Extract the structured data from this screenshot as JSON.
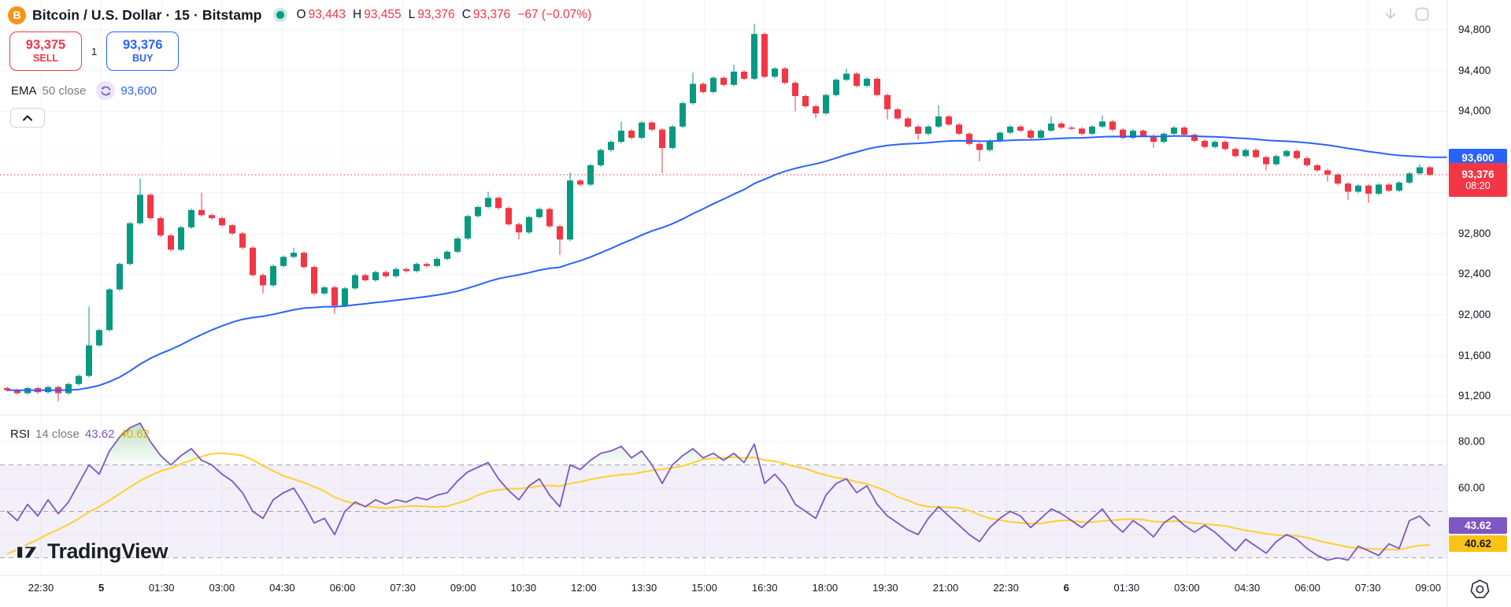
{
  "header": {
    "symbol_title": "Bitcoin / U.S. Dollar · 15 · Bitstamp",
    "ohlc": {
      "o_label": "O",
      "o_value": "93,443",
      "h_label": "H",
      "h_value": "93,455",
      "l_label": "L",
      "l_value": "93,376",
      "c_label": "C",
      "c_value": "93,376",
      "change": "−67 (−0.07%)"
    }
  },
  "trade_panel": {
    "sell_price": "93,375",
    "sell_label": "SELL",
    "spread": "1",
    "buy_price": "93,376",
    "buy_label": "BUY"
  },
  "ema_row": {
    "name": "EMA",
    "params": "50 close",
    "value": "93,600"
  },
  "rsi_row": {
    "name": "RSI",
    "params": "14 close",
    "value": "43.62",
    "ma_value": "40.62"
  },
  "price_axis": {
    "labels": [
      "94,800",
      "94,400",
      "94,000",
      "92,800",
      "92,400",
      "92,000",
      "91,600",
      "91,200"
    ],
    "values": [
      94800,
      94400,
      94000,
      92800,
      92400,
      92000,
      91600,
      91200
    ],
    "ema_badge": "93,600",
    "last_badge": "93,376",
    "last_badge_time": "08:20"
  },
  "rsi_axis": {
    "labels": [
      "80.00",
      "60.00"
    ],
    "values": [
      80,
      60
    ],
    "rsi_badge": "43.62",
    "ma_badge": "40.62"
  },
  "watermark": "TradingView",
  "colors": {
    "up": "#089981",
    "down": "#f23645",
    "ema": "#2962ff",
    "rsi": "#7e57c2",
    "rsi_ma": "#f5c338",
    "grid": "#f0f3fa",
    "axis_text": "#131722",
    "muted_text": "#787b86",
    "buy_accent": "#2962ff",
    "sell_accent": "#f23645",
    "rsi_badge_bg": "#7e57c2",
    "rsi_ma_badge_bg": "#fbc318"
  },
  "chart_data": {
    "type": "candlestick",
    "title": "Bitcoin / U.S. Dollar",
    "interval": "15",
    "exchange": "Bitstamp",
    "ohlc_current": {
      "open": 93443,
      "high": 93455,
      "low": 93376,
      "close": 93376,
      "change": -67,
      "change_pct": -0.07
    },
    "visible_price_range": [
      91000,
      95000
    ],
    "last_price": 93376,
    "countdown": "08:20",
    "closes": [
      91260,
      91230,
      91280,
      91240,
      91290,
      91230,
      91320,
      91400,
      91700,
      91850,
      92250,
      92500,
      92900,
      93180,
      92950,
      92780,
      92640,
      92860,
      93030,
      92980,
      92950,
      92880,
      92800,
      92660,
      92390,
      92290,
      92480,
      92570,
      92610,
      92470,
      92210,
      92270,
      92090,
      92260,
      92390,
      92340,
      92420,
      92380,
      92450,
      92430,
      92500,
      92480,
      92550,
      92620,
      92750,
      92970,
      93060,
      93150,
      93050,
      92890,
      92810,
      92960,
      93040,
      92870,
      92740,
      93320,
      93280,
      93470,
      93620,
      93700,
      93810,
      93740,
      93890,
      93820,
      93640,
      93850,
      94080,
      94270,
      94190,
      94330,
      94260,
      94390,
      94320,
      94760,
      94340,
      94420,
      94280,
      94150,
      94050,
      93980,
      94160,
      94310,
      94370,
      94250,
      94320,
      94160,
      94020,
      93930,
      93850,
      93780,
      93850,
      93950,
      93870,
      93780,
      93680,
      93620,
      93710,
      93790,
      93850,
      93810,
      93740,
      93810,
      93880,
      93840,
      93830,
      93780,
      93850,
      93900,
      93820,
      93740,
      93810,
      93760,
      93700,
      93780,
      93840,
      93770,
      93710,
      93650,
      93700,
      93630,
      93560,
      93620,
      93550,
      93480,
      93560,
      93610,
      93540,
      93470,
      93420,
      93380,
      93290,
      93210,
      93270,
      93190,
      93280,
      93220,
      93300,
      93390,
      93450,
      93376
    ],
    "wick_overrides": {
      "5": [
        0,
        91150
      ],
      "8": [
        92080,
        0
      ],
      "13": [
        93340,
        0
      ],
      "19": [
        93200,
        0
      ],
      "25": [
        0,
        92210
      ],
      "28": [
        92660,
        0
      ],
      "32": [
        0,
        92010
      ],
      "47": [
        93210,
        0
      ],
      "50": [
        0,
        92740
      ],
      "54": [
        0,
        92590
      ],
      "55": [
        93400,
        0
      ],
      "60": [
        93900,
        0
      ],
      "64": [
        0,
        93390
      ],
      "67": [
        94380,
        0
      ],
      "71": [
        94460,
        0
      ],
      "73": [
        94860,
        0
      ],
      "77": [
        0,
        94000
      ],
      "79": [
        0,
        93930
      ],
      "82": [
        94420,
        0
      ],
      "86": [
        0,
        93920
      ],
      "89": [
        0,
        93720
      ],
      "91": [
        94060,
        0
      ],
      "95": [
        0,
        93510
      ],
      "102": [
        93950,
        0
      ],
      "107": [
        93960,
        0
      ],
      "112": [
        0,
        93640
      ],
      "123": [
        0,
        93420
      ],
      "129": [
        0,
        93310
      ],
      "131": [
        0,
        93130
      ],
      "133": [
        0,
        93100
      ],
      "138": [
        93480,
        0
      ]
    },
    "indicators": {
      "ema": {
        "period": 50,
        "source": "close",
        "last": 93600
      },
      "rsi": {
        "period": 14,
        "source": "close",
        "last": 43.62,
        "ma_last": 40.62,
        "levels": [
          70,
          50,
          30
        ],
        "scale_labels": [
          80,
          60
        ],
        "values": [
          50,
          46,
          53,
          48,
          55,
          49,
          54,
          62,
          70,
          66,
          76,
          82,
          86,
          88,
          80,
          74,
          70,
          74,
          77,
          72,
          70,
          66,
          63,
          58,
          50,
          47,
          55,
          58,
          60,
          53,
          45,
          47,
          40,
          50,
          54,
          52,
          55,
          53,
          55,
          54,
          56,
          55,
          57,
          58,
          63,
          67,
          69,
          71,
          64,
          59,
          55,
          61,
          64,
          57,
          52,
          70,
          68,
          72,
          75,
          76,
          78,
          73,
          76,
          70,
          62,
          70,
          74,
          77,
          73,
          75,
          72,
          75,
          71,
          79,
          62,
          66,
          61,
          53,
          50,
          47,
          57,
          62,
          64,
          58,
          61,
          53,
          48,
          45,
          42,
          40,
          47,
          52,
          48,
          44,
          40,
          37,
          43,
          47,
          50,
          48,
          43,
          47,
          51,
          49,
          46,
          43,
          47,
          51,
          45,
          41,
          46,
          43,
          39,
          45,
          48,
          44,
          41,
          44,
          41,
          37,
          33,
          38,
          35,
          32,
          37,
          40,
          38,
          34,
          31,
          29,
          30,
          29,
          35,
          33,
          31,
          36,
          34,
          46,
          48,
          43.62
        ]
      }
    },
    "x_labels": [
      {
        "t": "22:30",
        "bold": false
      },
      {
        "t": "5",
        "bold": true
      },
      {
        "t": "01:30",
        "bold": false
      },
      {
        "t": "03:00",
        "bold": false
      },
      {
        "t": "04:30",
        "bold": false
      },
      {
        "t": "06:00",
        "bold": false
      },
      {
        "t": "07:30",
        "bold": false
      },
      {
        "t": "09:00",
        "bold": false
      },
      {
        "t": "10:30",
        "bold": false
      },
      {
        "t": "12:00",
        "bold": false
      },
      {
        "t": "13:30",
        "bold": false
      },
      {
        "t": "15:00",
        "bold": false
      },
      {
        "t": "16:30",
        "bold": false
      },
      {
        "t": "18:00",
        "bold": false
      },
      {
        "t": "19:30",
        "bold": false
      },
      {
        "t": "21:00",
        "bold": false
      },
      {
        "t": "22:30",
        "bold": false
      },
      {
        "t": "6",
        "bold": true
      },
      {
        "t": "01:30",
        "bold": false
      },
      {
        "t": "03:00",
        "bold": false
      },
      {
        "t": "04:30",
        "bold": false
      },
      {
        "t": "06:00",
        "bold": false
      },
      {
        "t": "07:30",
        "bold": false
      },
      {
        "t": "09:00",
        "bold": false
      }
    ]
  }
}
